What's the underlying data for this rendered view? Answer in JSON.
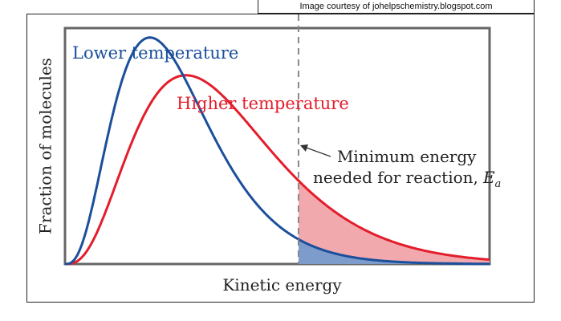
{
  "credit": "Image courtesy of johelpschemistry.blogspot.com",
  "chart_data": {
    "type": "line",
    "title": "",
    "xlabel": "Kinetic energy",
    "ylabel": "Fraction of molecules",
    "xlim": [
      0,
      10
    ],
    "ylim": [
      0,
      1
    ],
    "grid": false,
    "series": [
      {
        "name": "Lower temperature",
        "color": "#1b4f9c",
        "shape_k": 3,
        "peak_x": 2.0,
        "peak_y": 0.96
      },
      {
        "name": "Higher temperature",
        "color": "#e41d2b",
        "shape_k": 3,
        "peak_x": 2.85,
        "peak_y": 0.8
      }
    ],
    "threshold": {
      "x": 5.5,
      "label_line1": "Minimum energy",
      "label_line2": "needed for reaction,",
      "symbol": "E",
      "subscript": "a"
    },
    "shaded_colors": {
      "higher": "#f2a9ad",
      "lower": "#7e9ccb"
    }
  }
}
